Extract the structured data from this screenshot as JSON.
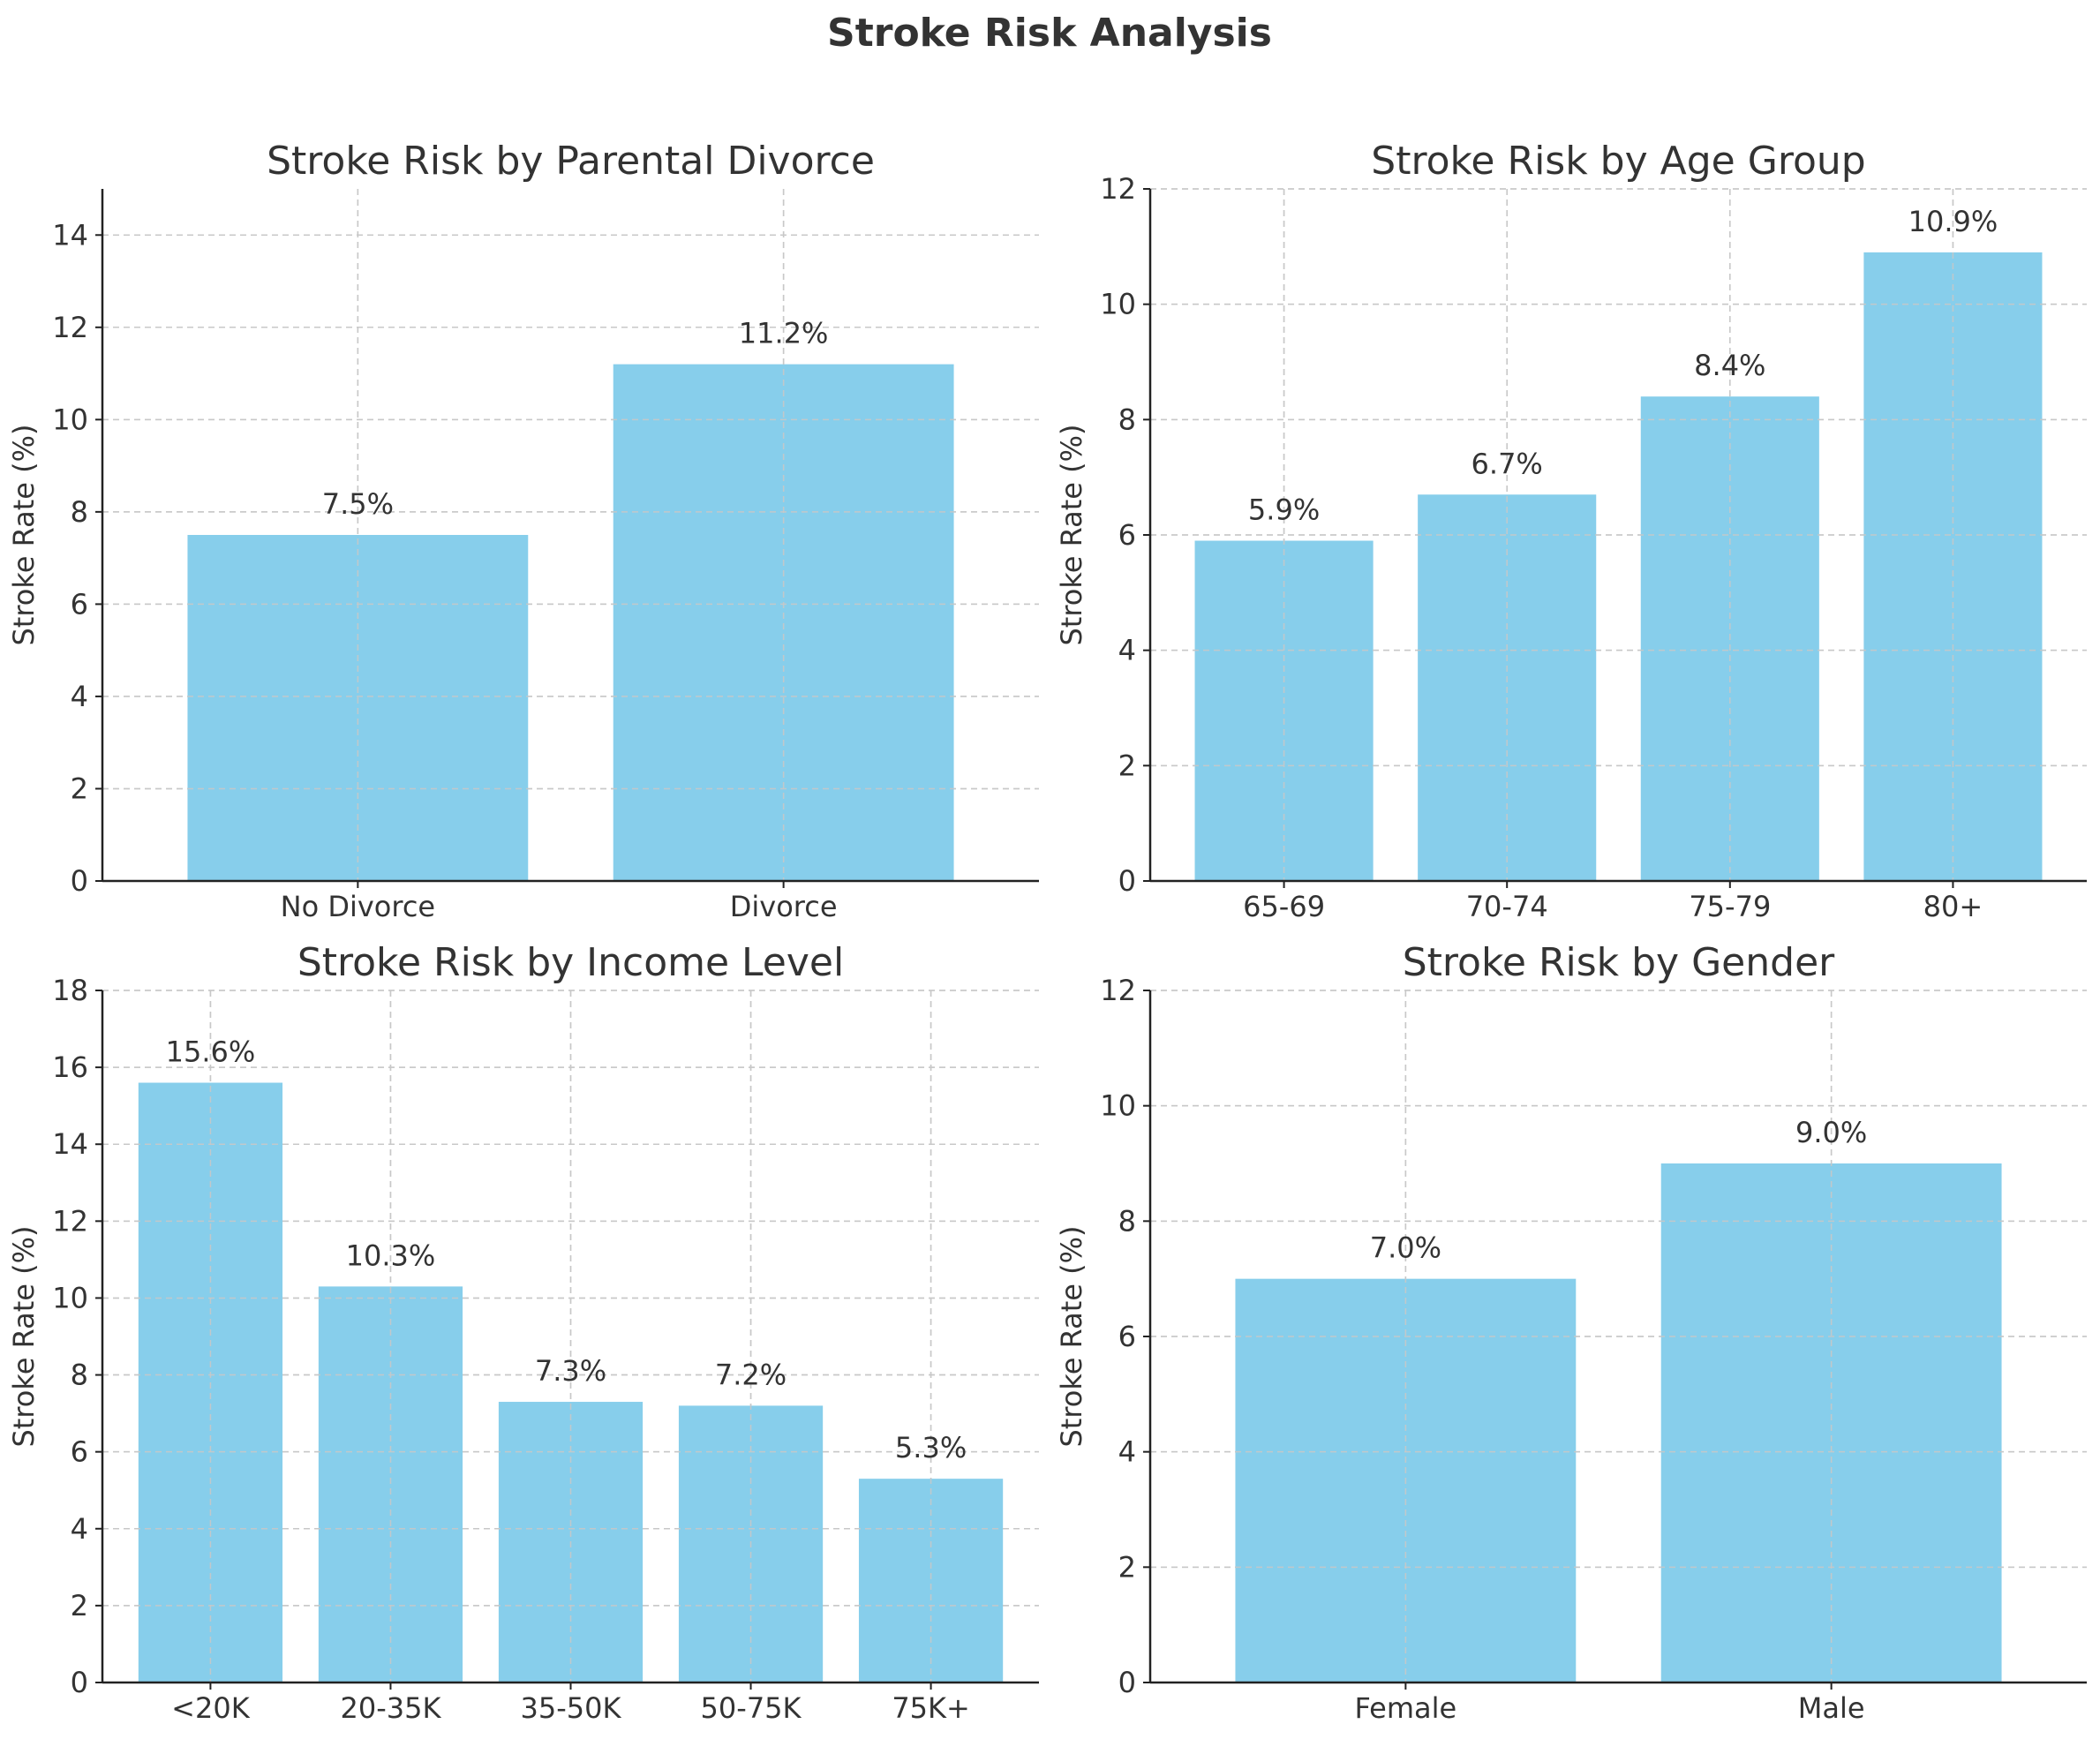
{
  "chart_data": {
    "suptitle": "Stroke Risk Analysis",
    "subplots": [
      {
        "type": "bar",
        "title": "Stroke Risk by Parental Divorce",
        "xlabel": "",
        "ylabel": "Stroke Rate (%)",
        "categories": [
          "No Divorce",
          "Divorce"
        ],
        "values": [
          7.5,
          11.2
        ],
        "labels": [
          "7.5%",
          "11.2%"
        ],
        "ylim": [
          0,
          15
        ],
        "yticks": [
          0,
          2,
          4,
          6,
          8,
          10,
          12,
          14
        ],
        "color": "#87CEEB",
        "grid": true
      },
      {
        "type": "bar",
        "title": "Stroke Risk by Age Group",
        "xlabel": "",
        "ylabel": "Stroke Rate (%)",
        "categories": [
          "65-69",
          "70-74",
          "75-79",
          "80+"
        ],
        "values": [
          5.9,
          6.7,
          8.4,
          10.9
        ],
        "labels": [
          "5.9%",
          "6.7%",
          "8.4%",
          "10.9%"
        ],
        "ylim": [
          0,
          12
        ],
        "yticks": [
          0,
          2,
          4,
          6,
          8,
          10,
          12
        ],
        "color": "#87CEEB",
        "grid": true
      },
      {
        "type": "bar",
        "title": "Stroke Risk by Income Level",
        "xlabel": "",
        "ylabel": "Stroke Rate (%)",
        "categories": [
          "<20K",
          "20-35K",
          "35-50K",
          "50-75K",
          "75K+"
        ],
        "values": [
          15.6,
          10.3,
          7.3,
          7.2,
          5.3
        ],
        "labels": [
          "15.6%",
          "10.3%",
          "7.3%",
          "7.2%",
          "5.3%"
        ],
        "ylim": [
          0,
          18
        ],
        "yticks": [
          0,
          2,
          4,
          6,
          8,
          10,
          12,
          14,
          16,
          18
        ],
        "color": "#87CEEB",
        "grid": true
      },
      {
        "type": "bar",
        "title": "Stroke Risk by Gender",
        "xlabel": "",
        "ylabel": "Stroke Rate (%)",
        "categories": [
          "Female",
          "Male"
        ],
        "values": [
          7.0,
          9.0
        ],
        "labels": [
          "7.0%",
          "9.0%"
        ],
        "ylim": [
          0,
          12
        ],
        "yticks": [
          0,
          2,
          4,
          6,
          8,
          10,
          12
        ],
        "color": "#87CEEB",
        "grid": true
      }
    ]
  }
}
